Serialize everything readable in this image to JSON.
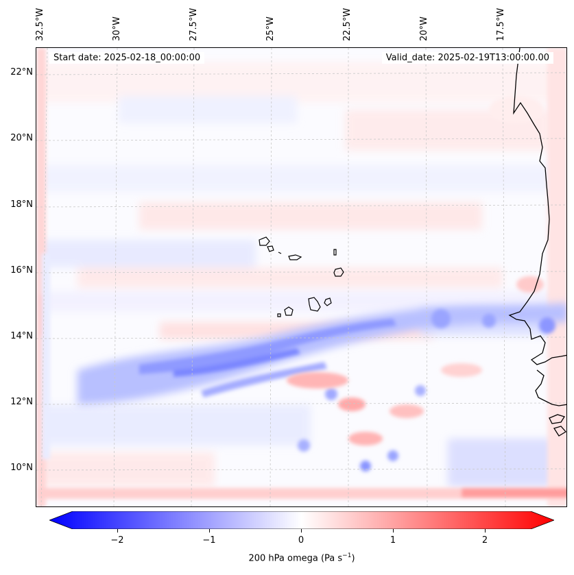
{
  "map": {
    "lon_labels": [
      "32.5°W",
      "30°W",
      "27.5°W",
      "25°W",
      "22.5°W",
      "20°W",
      "17.5°W"
    ],
    "lat_labels": [
      "22°N",
      "20°N",
      "18°N",
      "16°N",
      "14°N",
      "12°N",
      "10°N"
    ],
    "start_date": "Start date: 2025-02-18_00:00:00",
    "valid_date": "Valid_date: 2025-02-19T13:00:00.00",
    "field": "200 hPa omega",
    "gridlines": true,
    "coastline_color": "#000000",
    "colormap": "bwr"
  },
  "colorbar": {
    "ticks": [
      "−2",
      "−1",
      "0",
      "1",
      "2"
    ],
    "tick_values": [
      -2,
      -1,
      0,
      1,
      2
    ],
    "range": [
      -2.75,
      2.75
    ],
    "title_text": "200 hPa omega (Pa s",
    "title_exp": "−1",
    "title_close": ")",
    "colors": {
      "min": "#0000ff",
      "mid": "#ffffff",
      "max": "#ff0000"
    }
  }
}
